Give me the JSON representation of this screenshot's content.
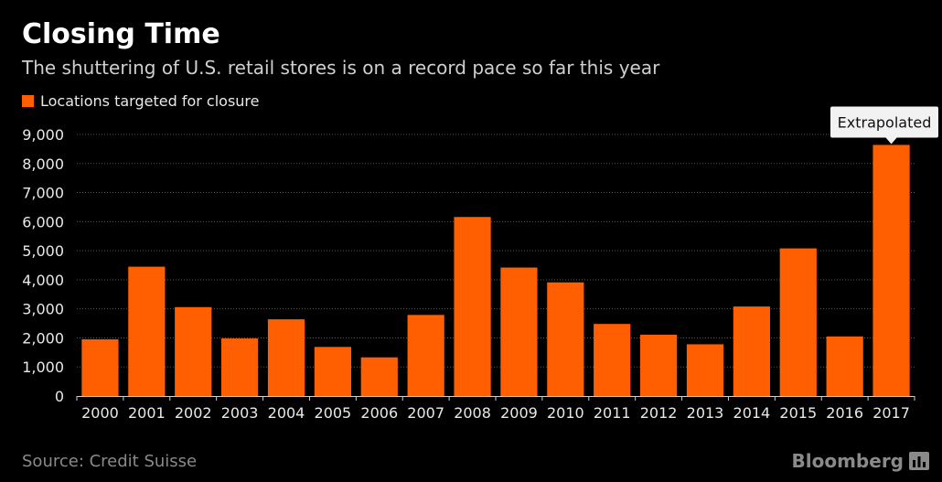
{
  "header": {
    "title": "Closing Time",
    "subtitle": "The shuttering of U.S. retail stores is on a record pace so far this year"
  },
  "legend": {
    "label": "Locations targeted for closure"
  },
  "footer": {
    "source": "Source: Credit Suisse",
    "brand": "Bloomberg",
    "brand_icon": "bar-chart-icon"
  },
  "colors": {
    "bar": "#ff5f00",
    "background": "#000000",
    "grid": "#555555"
  },
  "chart_data": {
    "type": "bar",
    "categories": [
      "2000",
      "2001",
      "2002",
      "2003",
      "2004",
      "2005",
      "2006",
      "2007",
      "2008",
      "2009",
      "2010",
      "2011",
      "2012",
      "2013",
      "2014",
      "2015",
      "2016",
      "2017"
    ],
    "series": [
      {
        "name": "Locations targeted for closure",
        "values": [
          1950,
          4450,
          3060,
          1980,
          2640,
          1690,
          1330,
          2790,
          6160,
          4420,
          3910,
          2480,
          2110,
          1780,
          3080,
          5080,
          2050,
          8640
        ]
      }
    ],
    "ylim": [
      0,
      9000
    ],
    "yticks": [
      "0",
      "1,000",
      "2,000",
      "3,000",
      "4,000",
      "5,000",
      "6,000",
      "7,000",
      "8,000",
      "9,000"
    ],
    "grid": true,
    "annotation": {
      "category": "2017",
      "text": "Extrapolated"
    }
  }
}
